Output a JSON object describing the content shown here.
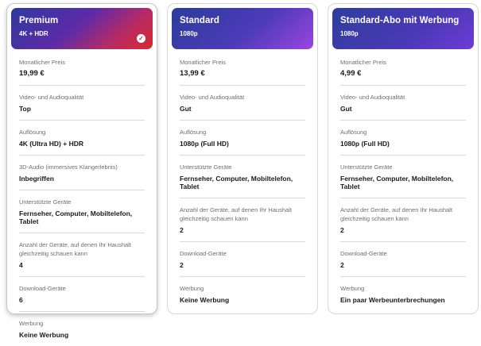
{
  "plans": [
    {
      "name": "Premium",
      "resolution": "4K + HDR",
      "selected": true,
      "attributes": [
        {
          "label": "Monatlicher Preis",
          "value": "19,99 €"
        },
        {
          "label": "Video- und Audioqualität",
          "value": "Top"
        },
        {
          "label": "Auflösung",
          "value": "4K (Ultra HD) + HDR"
        },
        {
          "label": "3D-Audio (immersives Klangerlebnis)",
          "value": "Inbegriffen"
        },
        {
          "label": "Unterstützte Geräte",
          "value": "Fernseher, Computer, Mobiltelefon, Tablet"
        },
        {
          "label": "Anzahl der Geräte, auf denen Ihr Haushalt gleichzeitig schauen kann",
          "value": "4"
        },
        {
          "label": "Download-Geräte",
          "value": "6"
        },
        {
          "label": "Werbung",
          "value": "Keine Werbung"
        }
      ]
    },
    {
      "name": "Standard",
      "resolution": "1080p",
      "selected": false,
      "attributes": [
        {
          "label": "Monatlicher Preis",
          "value": "13,99 €"
        },
        {
          "label": "Video- und Audioqualität",
          "value": "Gut"
        },
        {
          "label": "Auflösung",
          "value": "1080p (Full HD)"
        },
        {
          "label": "Unterstützte Geräte",
          "value": "Fernseher, Computer, Mobiltelefon, Tablet"
        },
        {
          "label": "Anzahl der Geräte, auf denen Ihr Haushalt gleichzeitig schauen kann",
          "value": "2"
        },
        {
          "label": "Download-Geräte",
          "value": "2"
        },
        {
          "label": "Werbung",
          "value": "Keine Werbung"
        }
      ]
    },
    {
      "name": "Standard-Abo mit Werbung",
      "resolution": "1080p",
      "selected": false,
      "attributes": [
        {
          "label": "Monatlicher Preis",
          "value": "4,99 €"
        },
        {
          "label": "Video- und Audioqualität",
          "value": "Gut"
        },
        {
          "label": "Auflösung",
          "value": "1080p (Full HD)"
        },
        {
          "label": "Unterstützte Geräte",
          "value": "Fernseher, Computer, Mobiltelefon, Tablet"
        },
        {
          "label": "Anzahl der Geräte, auf denen Ihr Haushalt gleichzeitig schauen kann",
          "value": "2"
        },
        {
          "label": "Download-Geräte",
          "value": "2"
        },
        {
          "label": "Werbung",
          "value": "Ein paar Werbeunterbrechungen"
        }
      ]
    }
  ],
  "icons": {
    "selected": "check-circle-icon"
  },
  "colors": {
    "premium_accent": "#d8282e",
    "standard_accent": "#9b45e0",
    "ads_accent": "#6f3bd6"
  }
}
